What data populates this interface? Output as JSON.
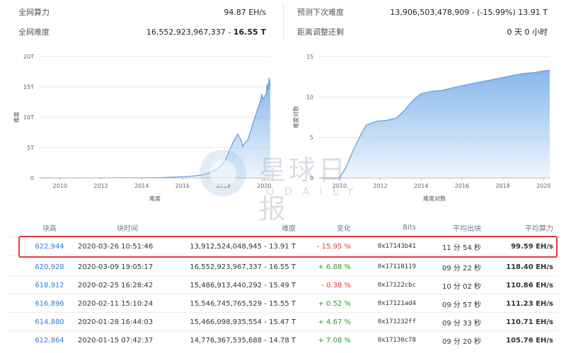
{
  "stats": {
    "left": [
      {
        "label": "全网算力",
        "value": "94.87 EH/s"
      },
      {
        "label": "全网难度",
        "value": "16,552,923,967,337 - ",
        "value_bold": "16.55 T"
      }
    ],
    "right": [
      {
        "label": "预测下次难度",
        "value": "13,906,503,478,909 - (-15.99%) 13.91 T"
      },
      {
        "label": "距离调整还剩",
        "value": "0 天 0 小时"
      }
    ]
  },
  "watermark": {
    "cn": "星球日报",
    "en": "ODAILY"
  },
  "chart_data": [
    {
      "type": "area",
      "xlabel": "难度",
      "ylabel": "难度",
      "x_ticks": [
        "2010",
        "2012",
        "2014",
        "2016",
        "2018",
        "2020"
      ],
      "y_ticks": [
        "0",
        "5T",
        "10T",
        "15T",
        "20T"
      ],
      "xlim": [
        2009.0,
        2020.3
      ],
      "ylim": [
        0,
        20
      ],
      "grid": true,
      "color": "#7fb3ea",
      "x": [
        2009.0,
        2013.0,
        2014.0,
        2015.0,
        2016.0,
        2016.5,
        2017.0,
        2017.3,
        2017.6,
        2017.9,
        2018.1,
        2018.3,
        2018.5,
        2018.7,
        2018.85,
        2018.95,
        2019.05,
        2019.2,
        2019.35,
        2019.5,
        2019.65,
        2019.8,
        2019.88,
        2019.95,
        2020.02,
        2020.1,
        2020.15,
        2020.2,
        2020.24,
        2020.27,
        2020.3
      ],
      "y": [
        0,
        0.01,
        0.03,
        0.06,
        0.2,
        0.3,
        0.5,
        0.8,
        1.3,
        2.0,
        3.0,
        4.5,
        6.0,
        7.2,
        6.4,
        5.2,
        5.7,
        6.3,
        7.8,
        9.5,
        11.0,
        12.5,
        13.7,
        13.0,
        13.4,
        13.9,
        15.5,
        14.4,
        16.5,
        16.0,
        15.2
      ]
    },
    {
      "type": "area",
      "xlabel": "难度对数",
      "ylabel": "难度对数",
      "x_ticks": [
        "2010",
        "2012",
        "2014",
        "2016",
        "2018",
        "2020"
      ],
      "y_ticks": [
        "0",
        "5",
        "10",
        "15"
      ],
      "xlim": [
        2009.0,
        2020.3
      ],
      "ylim": [
        0,
        15
      ],
      "grid": true,
      "color": "#7fb3ea",
      "x": [
        2009.0,
        2010.0,
        2010.3,
        2010.6,
        2010.9,
        2011.1,
        2011.3,
        2011.5,
        2011.8,
        2012.3,
        2012.8,
        2013.2,
        2013.6,
        2014.0,
        2014.5,
        2015.0,
        2015.5,
        2016.0,
        2016.6,
        2017.2,
        2017.8,
        2018.4,
        2019.0,
        2019.5,
        2020.0,
        2020.3
      ],
      "y": [
        0,
        0,
        1.2,
        3.0,
        4.6,
        5.6,
        6.5,
        6.7,
        7.0,
        7.1,
        7.4,
        8.4,
        9.6,
        10.4,
        10.7,
        10.8,
        11.1,
        11.4,
        11.7,
        12.0,
        12.3,
        12.6,
        12.9,
        13.0,
        13.2,
        13.3
      ]
    }
  ],
  "table": {
    "headers": [
      "块高",
      "块时间",
      "难度",
      "变化",
      "Bits",
      "平均出块",
      "平均算力"
    ],
    "rows": [
      {
        "height": "622,944",
        "time": "2020-03-26 10:51:46",
        "difficulty": "13,912,524,048,945 - 13.91 T",
        "change": "- 15.95 %",
        "bits": "0x17143b41",
        "avg_block": "11 分 54 秒",
        "hashrate": "99.59 EH/s",
        "trend": "neg"
      },
      {
        "height": "620,928",
        "time": "2020-03-09 19:05:17",
        "difficulty": "16,552,923,967,337 - 16.55 T",
        "change": "+ 6.88 %",
        "bits": "0x17110119",
        "avg_block": "09 分 22 秒",
        "hashrate": "118.40 EH/s",
        "trend": "pos"
      },
      {
        "height": "618,912",
        "time": "2020-02-25 16:28:42",
        "difficulty": "15,486,913,440,292 - 15.49 T",
        "change": "- 0.38 %",
        "bits": "0x17122cbc",
        "avg_block": "10 分 02 秒",
        "hashrate": "110.86 EH/s",
        "trend": "neg"
      },
      {
        "height": "616,896",
        "time": "2020-02-11 15:10:24",
        "difficulty": "15,546,745,765,529 - 15.55 T",
        "change": "+ 0.52 %",
        "bits": "0x17121ad4",
        "avg_block": "09 分 57 秒",
        "hashrate": "111.23 EH/s",
        "trend": "pos"
      },
      {
        "height": "614,880",
        "time": "2020-01-28 16:44:03",
        "difficulty": "15,466,098,935,554 - 15.47 T",
        "change": "+ 4.67 %",
        "bits": "0x171232ff",
        "avg_block": "09 分 33 秒",
        "hashrate": "110.71 EH/s",
        "trend": "pos"
      },
      {
        "height": "612,864",
        "time": "2020-01-15 07:42:37",
        "difficulty": "14,776,367,535,688 - 14.78 T",
        "change": "+ 7.08 %",
        "bits": "0x17130c78",
        "avg_block": "09 分 20 秒",
        "hashrate": "105.76 EH/s",
        "trend": "pos"
      }
    ]
  }
}
